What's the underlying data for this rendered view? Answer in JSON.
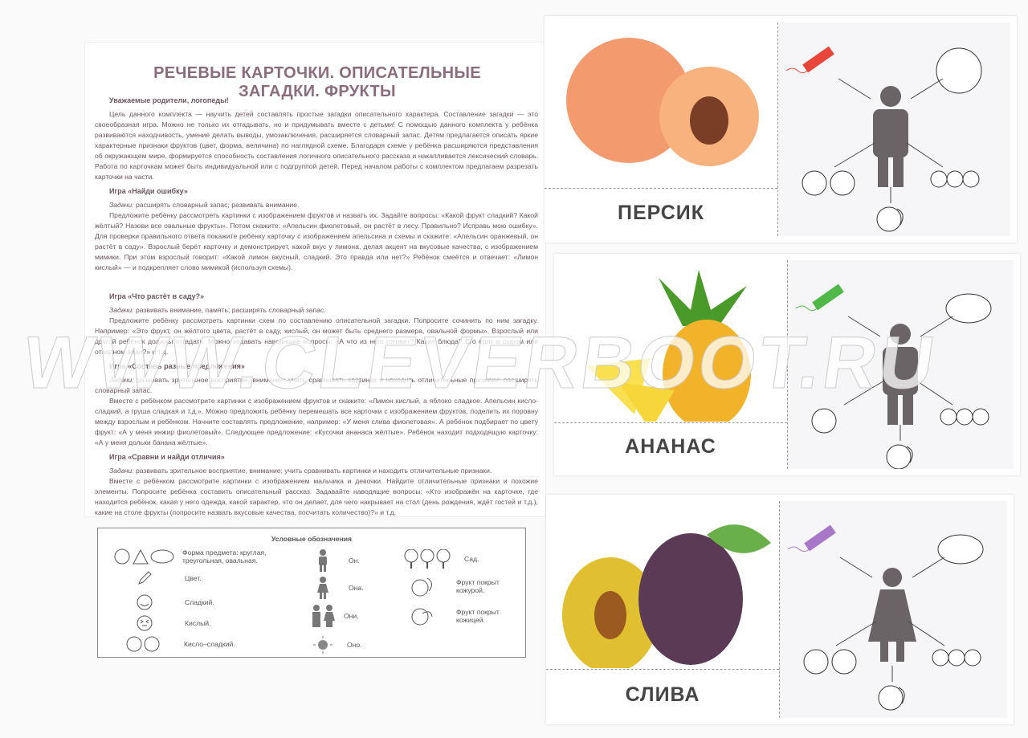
{
  "title": "РЕЧЕВЫЕ КАРТОЧКИ. ОПИСАТЕЛЬНЫЕ ЗАГАДКИ. ФРУКТЫ",
  "intro": {
    "greeting": "Уважаемые родители, логопеды!",
    "text": "Цель данного комплекта — научить детей составлять простые загадки описательного характера. Составление загадки — это своеобразная игра. Можно не только их отгадывать, но и придумывать вместе с детьми! С помощью данного комплекта у ребёнка развиваются находчивость, умение делать выводы, умозаключения, расширяется словарный запас. Детям предлагается описать яркие характерные признаки фруктов (цвет, форма, величина) по наглядной схеме. Благодаря схеме у ребёнка расширяются представления об окружающем мире, формируется способность составления логичного описательного рассказа и накапливается лексический словарь. Работа по карточкам может быть индивидуальной или с подгруппой детей. Перед началом работы с комплектом предлагаем разрезать карточки на части."
  },
  "games": [
    {
      "title": "Игра «Найди ошибку»",
      "task_label": "Задачи:",
      "task": " расширять словарный запас; развивать внимание.",
      "text": "Предложите ребёнку рассмотреть картинки с изображением фруктов и назвать их. Задайте вопросы: «Какой фрукт сладкий? Какой жёлтый? Назови все овальные фрукты». Потом скажите: «Апельсин фиолетовый, он растёт в лесу. Правильно? Исправь мою ошибку». Для проверки правильного ответа покажите ребёнку карточку с изображением апельсина и схемы и скажите: «Апельсин оранжевый, он растёт в саду». Взрослый берёт карточку и демонстрирует, какой вкус у лимона, делая акцент на вкусовые качества, с изображением мимики. При этом взрослый говорит: «Какой лимон вкусный, сладкий. Это правда или нет?» Ребёнок смеётся и отвечает: «Лимон кислый» — и подкрепляет слово мимикой (используя схемы)."
    },
    {
      "title": "Игра «Что растёт в саду?»",
      "task_label": "Задачи:",
      "task": " развивать внимание, память; расширять словарный запас.",
      "text": "Предложите ребёнку рассмотреть картинки схем по составлению описательной загадки. Попросите сочинить по ним загадку. Например: «Это фрукт, он жёлтого цвета, растёт в саду, кислый, он может быть среднего размера, овальной формы». Взрослый или другой ребёнок должны отгадать. Можно задавать наводящие вопросы: «А что из него готовят? Какие блюда? Его едят в сыром или отварном виде?» и т.д."
    },
    {
      "title": "Игра «Составь разные предложения»",
      "task_label": "Задачи:",
      "task": " развивать зрительное восприятие, внимание; учить сравнивать картинки и находить отличительные признаки; расширять словарный запас.",
      "text": "Вместе с ребёнком рассмотрите картинки с изображением фруктов и скажите: «Лимон кислый, а яблоко сладкое. Апельсин кисло-сладкий, а груша сладкая и т.д.». Можно предложить ребёнку перемешать все карточки с изображением фруктов, поделить их поровну между взрослым и ребёнком. Начните составлять предложение, например: «У меня слива фиолетовая». А ребёнок подбирает по цвету фрукт: «А у меня инжир фиолетовый». Следующее предложение: «Кусочки ананаса жёлтые». Ребёнок находит подходящую карточку: «А у меня дольки банана жёлтые»."
    },
    {
      "title": "Игра «Сравни и найди отличия»",
      "task_label": "Задачи:",
      "task": " развивать зрительное восприятие, внимание; учить сравнивать картинки и находить отличительные признаки.",
      "text": "Вместе с ребёнком рассмотрите картинки с изображением мальчика и девочки. Найдите отличительные признаки и похожие элементы. Попросите ребёнка составить описательный рассказ. Задавайте наводящие вопросы: «Кто изображён на карточке, где находится ребёнок, какая у него одежда, какой характер, что он делает, для чего накрывает на стол (день рождения, ждёт гостей и т.д.), какие на столе фрукты (попросите назвать вкусовые качества, посчитать количество)?» и т.д."
    }
  ],
  "legend": {
    "title": "Условные обозначения",
    "items": {
      "shape": "Форма предмета: круглая, треугольная, овальная.",
      "color": "Цвет.",
      "sweet": "Сладкий.",
      "sour": "Кислый.",
      "sweet_sour": "Кисло–сладкий.",
      "he": "Он.",
      "she": "Она.",
      "they": "Они.",
      "it": "Оно.",
      "garden": "Сад.",
      "peel": "Фрукт покрыт кожурой.",
      "skin": "Фрукт покрыт кожицей."
    }
  },
  "cards": [
    {
      "name": "ПЕРСИК",
      "fruit_color": "#f39a6e",
      "pencil_color": "#e8463a",
      "figure": "boy"
    },
    {
      "name": "АНАНАС",
      "fruit_color": "#f2b32a",
      "pencil_color": "#4fb848",
      "figure": "boy"
    },
    {
      "name": "СЛИВА",
      "fruit_color": "#5b3a55",
      "pencil_color": "#a878c8",
      "figure": "girl"
    }
  ],
  "watermark": "WWW.CLEVERBOOT.RU"
}
